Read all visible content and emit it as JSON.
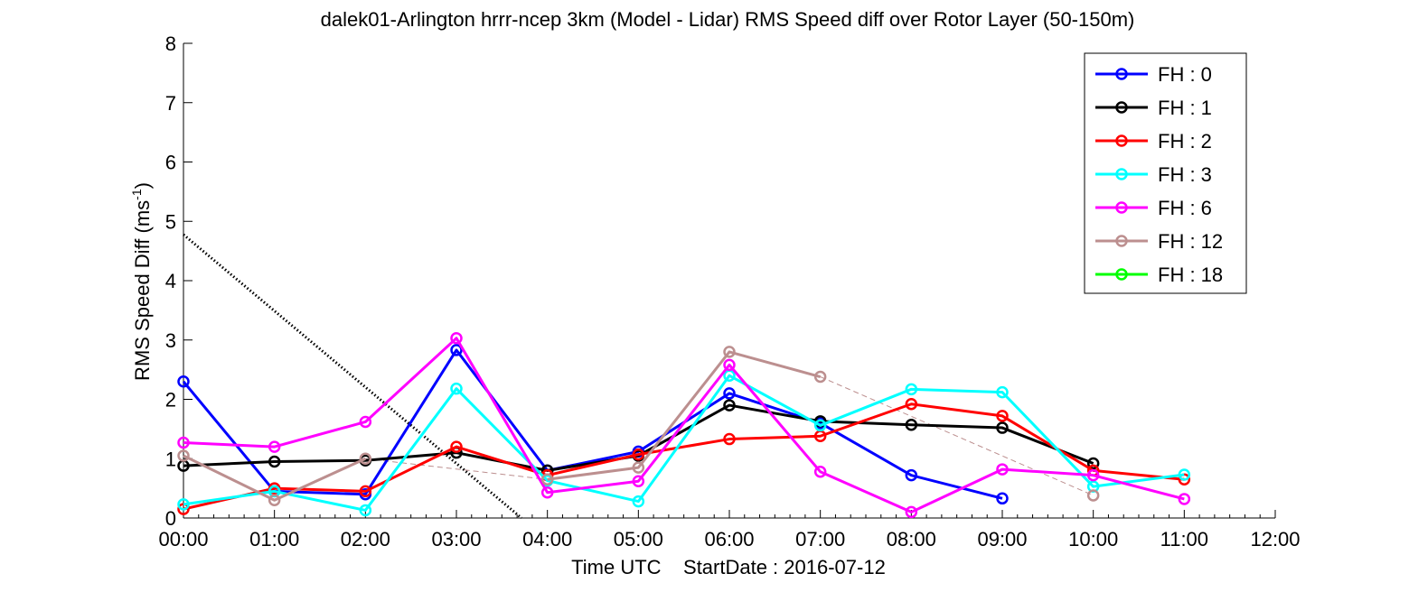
{
  "chart_data": {
    "type": "line",
    "title": "dalek01-Arlington hrrr-ncep 3km (Model - Lidar) RMS Speed diff over Rotor Layer (50-150m)",
    "xlabel": "Time UTC    StartDate : 2016-07-12",
    "ylabel": "RMS Speed Diff (ms",
    "ylabel_sup": "-1",
    "ylabel_end": ")",
    "x_ticks": [
      "00:00",
      "01:00",
      "02:00",
      "03:00",
      "04:00",
      "05:00",
      "06:00",
      "07:00",
      "08:00",
      "09:00",
      "10:00",
      "11:00",
      "12:00"
    ],
    "x_range_hours": [
      0,
      12
    ],
    "ylim": [
      0,
      8
    ],
    "y_ticks": [
      0,
      1,
      2,
      3,
      4,
      5,
      6,
      7,
      8
    ],
    "legend_placement": "top-right",
    "series": [
      {
        "name": "FH : 0",
        "color": "#0000ff",
        "points": [
          [
            0,
            2.3
          ],
          [
            1,
            0.45
          ],
          [
            2,
            0.4
          ],
          [
            3,
            2.83
          ],
          [
            4,
            0.8
          ],
          [
            5,
            1.12
          ],
          [
            6,
            2.1
          ],
          [
            7,
            1.6
          ],
          [
            8,
            0.72
          ],
          [
            9,
            0.33
          ]
        ]
      },
      {
        "name": "FH : 1",
        "color": "#000000",
        "points": [
          [
            0,
            0.88
          ],
          [
            1,
            0.95
          ],
          [
            2,
            0.97
          ],
          [
            3,
            1.1
          ],
          [
            4,
            0.8
          ],
          [
            5,
            1.05
          ],
          [
            6,
            1.9
          ],
          [
            7,
            1.63
          ],
          [
            8,
            1.57
          ],
          [
            9,
            1.52
          ],
          [
            10,
            0.92
          ]
        ]
      },
      {
        "name": "FH : 2",
        "color": "#ff0000",
        "points": [
          [
            0,
            0.15
          ],
          [
            1,
            0.5
          ],
          [
            2,
            0.45
          ],
          [
            3,
            1.2
          ],
          [
            4,
            0.72
          ],
          [
            5,
            1.07
          ],
          [
            6,
            1.33
          ],
          [
            7,
            1.38
          ],
          [
            8,
            1.92
          ],
          [
            9,
            1.72
          ],
          [
            10,
            0.8
          ],
          [
            11,
            0.65
          ]
        ]
      },
      {
        "name": "FH : 3",
        "color": "#00ffff",
        "points": [
          [
            0,
            0.23
          ],
          [
            1,
            0.45
          ],
          [
            2,
            0.13
          ],
          [
            3,
            2.18
          ],
          [
            4,
            0.63
          ],
          [
            5,
            0.28
          ],
          [
            6,
            2.4
          ],
          [
            7,
            1.56
          ],
          [
            8,
            2.17
          ],
          [
            9,
            2.12
          ],
          [
            10,
            0.53
          ],
          [
            11,
            0.73
          ]
        ]
      },
      {
        "name": "FH : 6",
        "color": "#ff00ff",
        "points": [
          [
            0,
            1.27
          ],
          [
            1,
            1.2
          ],
          [
            2,
            1.62
          ],
          [
            3,
            3.03
          ],
          [
            4,
            0.43
          ],
          [
            5,
            0.62
          ],
          [
            6,
            2.58
          ],
          [
            7,
            0.78
          ],
          [
            8,
            0.1
          ],
          [
            9,
            0.82
          ],
          [
            10,
            0.72
          ],
          [
            11,
            0.32
          ]
        ]
      },
      {
        "name": "FH : 12",
        "color": "#bc8f8f",
        "points": [
          [
            0,
            1.05
          ],
          [
            1,
            0.3
          ],
          [
            2,
            1.0
          ],
          [
            4,
            0.65
          ],
          [
            5,
            0.85
          ],
          [
            6,
            2.8
          ],
          [
            7,
            2.38
          ],
          [
            10,
            0.38
          ]
        ]
      },
      {
        "name": "FH : 18",
        "color": "#00ff00",
        "points": []
      }
    ]
  }
}
